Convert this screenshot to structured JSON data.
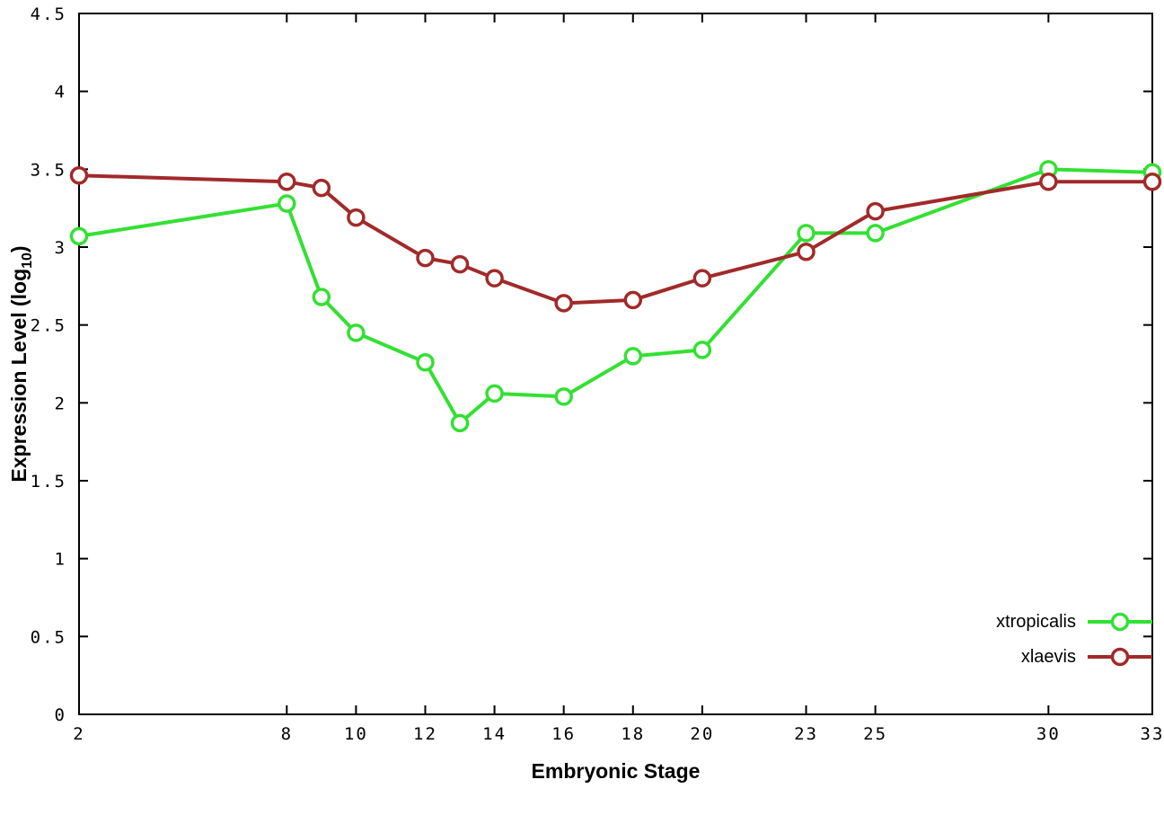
{
  "chart_data": {
    "type": "line",
    "title": "",
    "xlabel": "Embryonic Stage",
    "ylabel_prefix": "Expression Level (log",
    "ylabel_sub": "10",
    "ylabel_suffix": ")",
    "xlim": [
      2,
      33
    ],
    "ylim": [
      0,
      4.5
    ],
    "grid": false,
    "legend_position": "bottom-right",
    "background": "#ffffff",
    "axis_color": "#000000",
    "marker": "open-circle",
    "xticks": [
      2,
      8,
      10,
      12,
      14,
      16,
      18,
      20,
      23,
      25,
      30,
      33
    ],
    "xtick_labels": [
      "2",
      "8",
      "10",
      "12",
      "14",
      "16",
      "18",
      "20",
      "23",
      "25",
      "30",
      "33"
    ],
    "yticks": [
      0,
      0.5,
      1,
      1.5,
      2,
      2.5,
      3,
      3.5,
      4,
      4.5
    ],
    "ytick_labels": [
      "0",
      "0.5",
      "1",
      "1.5",
      "2",
      "2.5",
      "3",
      "3.5",
      "4",
      "4.5"
    ],
    "x": [
      2,
      8,
      9,
      10,
      12,
      13,
      14,
      16,
      18,
      20,
      23,
      25,
      30,
      33
    ],
    "series": [
      {
        "name": "xtropicalis",
        "color": "#33e033",
        "values": [
          3.07,
          3.28,
          2.68,
          2.45,
          2.26,
          1.87,
          2.06,
          2.04,
          2.3,
          2.34,
          3.09,
          3.09,
          3.5,
          3.48
        ]
      },
      {
        "name": "xlaevis",
        "color": "#a12a2a",
        "values": [
          3.46,
          3.42,
          3.38,
          3.19,
          2.93,
          2.89,
          2.8,
          2.64,
          2.66,
          2.8,
          2.97,
          3.23,
          3.42,
          3.42
        ]
      }
    ]
  }
}
